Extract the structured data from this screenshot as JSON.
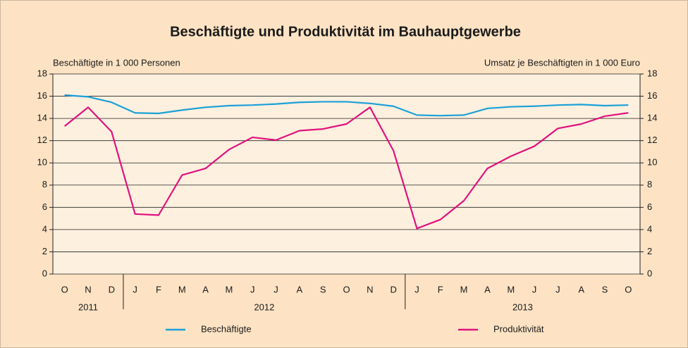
{
  "chart_data": {
    "type": "line",
    "title": "Beschäftigte und Produktivität im Bauhauptgewerbe",
    "ylabel": "Beschäftigte in 1 000 Personen",
    "y2label": "Umsatz je Beschäftigten in 1 000 Euro",
    "categories": [
      "O",
      "N",
      "D",
      "J",
      "F",
      "M",
      "A",
      "M",
      "J",
      "J",
      "A",
      "S",
      "O",
      "N",
      "D",
      "J",
      "F",
      "M",
      "A",
      "M",
      "J",
      "J",
      "A",
      "S",
      "O"
    ],
    "years": [
      "2011",
      "2012",
      "2013"
    ],
    "series": [
      {
        "name": "Beschäftigte",
        "color": "#1ba0d8",
        "axis": "y",
        "values": [
          16.1,
          15.95,
          15.45,
          14.5,
          14.45,
          14.75,
          15.0,
          15.15,
          15.2,
          15.3,
          15.45,
          15.5,
          15.5,
          15.35,
          15.1,
          14.3,
          14.25,
          14.3,
          14.9,
          15.05,
          15.1,
          15.2,
          15.25,
          15.15,
          15.2
        ]
      },
      {
        "name": "Produktivität",
        "color": "#e0127e",
        "axis": "y2",
        "values": [
          13.3,
          15.0,
          12.8,
          5.4,
          5.3,
          8.9,
          9.5,
          11.2,
          12.3,
          12.05,
          12.9,
          13.05,
          13.5,
          15.0,
          11.1,
          4.1,
          4.9,
          6.6,
          9.5,
          10.6,
          11.5,
          13.1,
          13.5,
          14.2,
          14.5
        ]
      }
    ],
    "ylim": [
      0,
      18
    ],
    "yticks": [
      0,
      2,
      4,
      6,
      8,
      10,
      12,
      14,
      16,
      18
    ],
    "y2lim": [
      0,
      18
    ],
    "y2ticks": [
      0,
      2,
      4,
      6,
      8,
      10,
      12,
      14,
      16,
      18
    ],
    "grid": true,
    "legend": "bottom"
  }
}
